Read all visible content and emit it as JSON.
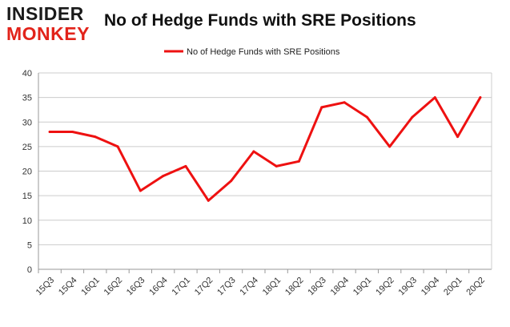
{
  "logo": {
    "line1": "INSIDER",
    "line2": "MONKEY"
  },
  "chart_data": {
    "type": "line",
    "title": "No of Hedge Funds with SRE Positions",
    "categories": [
      "15Q3",
      "15Q4",
      "16Q1",
      "16Q2",
      "16Q3",
      "16Q4",
      "17Q1",
      "17Q2",
      "17Q3",
      "17Q4",
      "18Q1",
      "18Q2",
      "18Q3",
      "18Q4",
      "19Q1",
      "19Q2",
      "19Q3",
      "19Q4",
      "20Q1",
      "20Q2"
    ],
    "series": [
      {
        "name": "No of Hedge Funds with SRE Positions",
        "values": [
          28,
          28,
          27,
          25,
          16,
          19,
          21,
          14,
          18,
          24,
          21,
          22,
          33,
          34,
          31,
          25,
          31,
          35,
          27,
          35
        ]
      }
    ],
    "xlabel": "",
    "ylabel": "",
    "ylim": [
      0,
      40
    ],
    "yticks": [
      0,
      5,
      10,
      15,
      20,
      25,
      30,
      35,
      40
    ],
    "grid": true,
    "legend_position": "top",
    "line_color": "#ee1111",
    "grid_color": "#cccccc"
  }
}
